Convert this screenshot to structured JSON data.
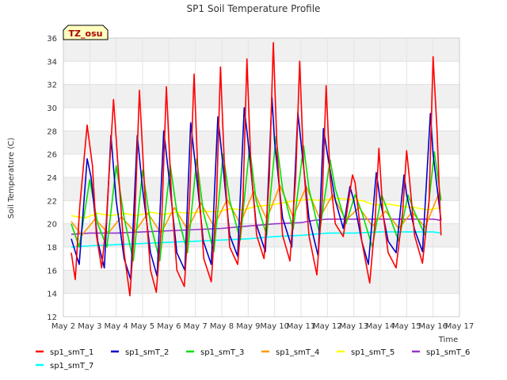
{
  "chart_data": {
    "type": "line",
    "title": "SP1 Soil Temperature Profile",
    "xlabel": "Time",
    "ylabel": "Soil Temperature (C)",
    "badge": "TZ_osu",
    "xlim": [
      2,
      17
    ],
    "ylim": [
      12,
      36
    ],
    "x_ticks": [
      {
        "v": 2,
        "label": "May 2"
      },
      {
        "v": 3,
        "label": "May 3"
      },
      {
        "v": 4,
        "label": "May 4"
      },
      {
        "v": 5,
        "label": "May 5"
      },
      {
        "v": 6,
        "label": "May 6"
      },
      {
        "v": 7,
        "label": "May 7"
      },
      {
        "v": 8,
        "label": "May 8"
      },
      {
        "v": 9,
        "label": "May 9"
      },
      {
        "v": 10,
        "label": "May 10"
      },
      {
        "v": 11,
        "label": "May 11"
      },
      {
        "v": 12,
        "label": "May 12"
      },
      {
        "v": 13,
        "label": "May 13"
      },
      {
        "v": 14,
        "label": "May 14"
      },
      {
        "v": 15,
        "label": "May 15"
      },
      {
        "v": 16,
        "label": "May 16"
      },
      {
        "v": 17,
        "label": "May 17"
      }
    ],
    "y_ticks": [
      {
        "v": 12,
        "label": "12"
      },
      {
        "v": 14,
        "label": "14"
      },
      {
        "v": 16,
        "label": "16"
      },
      {
        "v": 18,
        "label": "18"
      },
      {
        "v": 20,
        "label": "20"
      },
      {
        "v": 22,
        "label": "22"
      },
      {
        "v": 24,
        "label": "24"
      },
      {
        "v": 26,
        "label": "26"
      },
      {
        "v": 28,
        "label": "28"
      },
      {
        "v": 30,
        "label": "30"
      },
      {
        "v": 32,
        "label": "32"
      },
      {
        "v": 34,
        "label": "34"
      },
      {
        "v": 36,
        "label": "36"
      }
    ],
    "series": [
      {
        "name": "sp1_smT_1",
        "color": "#ff0000",
        "x": [
          2.3,
          2.45,
          2.62,
          2.9,
          3.1,
          3.25,
          3.45,
          3.62,
          3.9,
          4.1,
          4.3,
          4.52,
          4.7,
          4.88,
          5.1,
          5.3,
          5.52,
          5.72,
          5.9,
          6.1,
          6.3,
          6.58,
          6.78,
          6.95,
          7.1,
          7.32,
          7.6,
          7.8,
          7.95,
          8.1,
          8.3,
          8.6,
          8.8,
          8.95,
          9.1,
          9.32,
          9.6,
          9.8,
          9.95,
          10.1,
          10.3,
          10.58,
          10.8,
          10.95,
          11.1,
          11.3,
          11.6,
          11.8,
          11.95,
          12.1,
          12.3,
          12.6,
          12.8,
          12.95,
          13.05,
          13.3,
          13.6,
          13.8,
          13.95,
          14.1,
          14.3,
          14.6,
          14.85,
          15.0,
          15.1,
          15.3,
          15.6,
          15.85,
          16.0,
          16.15,
          16.3
        ],
        "y": [
          17.5,
          15.2,
          21.5,
          28.5,
          25,
          19,
          16.2,
          20,
          30.7,
          24,
          17.5,
          13.8,
          20,
          31.5,
          22,
          16,
          14.1,
          20,
          31.8,
          22,
          16,
          14.6,
          22,
          32.9,
          24,
          17,
          15.0,
          22,
          33.5,
          25,
          18,
          16.5,
          22,
          34.2,
          25,
          19,
          17.0,
          24,
          35.6,
          26,
          19,
          16.8,
          24,
          34.0,
          25,
          19,
          15.6,
          22,
          31.9,
          24,
          20,
          18.9,
          22,
          24.2,
          23.5,
          18.5,
          14.9,
          20,
          26.5,
          21,
          17.5,
          16.2,
          21,
          26.3,
          24,
          19,
          16.6,
          22,
          34.4,
          28,
          19
        ]
      },
      {
        "name": "sp1_smT_2",
        "color": "#0000cc",
        "x": [
          2.3,
          2.6,
          2.9,
          3.05,
          3.3,
          3.55,
          3.8,
          4.0,
          4.3,
          4.55,
          4.8,
          5.0,
          5.3,
          5.55,
          5.8,
          6.0,
          6.3,
          6.6,
          6.82,
          7.0,
          7.3,
          7.6,
          7.85,
          8.0,
          8.3,
          8.6,
          8.85,
          9.0,
          9.3,
          9.65,
          9.9,
          10.0,
          10.3,
          10.65,
          10.88,
          11.0,
          11.3,
          11.65,
          11.85,
          12.0,
          12.3,
          12.6,
          12.85,
          13.0,
          13.3,
          13.55,
          13.85,
          14.0,
          14.3,
          14.6,
          14.9,
          15.0,
          15.3,
          15.6,
          15.9,
          16.0,
          16.3
        ],
        "y": [
          18.7,
          16.5,
          25.6,
          24,
          18.5,
          16.2,
          27.6,
          22,
          17,
          15.2,
          27.6,
          23,
          17.5,
          15.5,
          28.0,
          24,
          17.5,
          16.0,
          28.7,
          25,
          18.5,
          16.5,
          29.2,
          26,
          19,
          17.2,
          30.0,
          27,
          20,
          17.6,
          30.9,
          27,
          20.5,
          18,
          29.6,
          27,
          20.5,
          17.2,
          28.2,
          26,
          22,
          19.6,
          23.2,
          22,
          18.5,
          16.5,
          24.4,
          22,
          18.5,
          17.5,
          24.2,
          22.5,
          19.5,
          17.6,
          29.5,
          26,
          20.3
        ]
      },
      {
        "name": "sp1_smT_3",
        "color": "#00e000",
        "x": [
          2.3,
          2.6,
          3.0,
          3.3,
          3.65,
          4.0,
          4.3,
          4.65,
          5.0,
          5.3,
          5.65,
          6.05,
          6.3,
          6.7,
          7.05,
          7.3,
          7.7,
          8.05,
          8.3,
          8.7,
          9.05,
          9.3,
          9.7,
          10.05,
          10.3,
          10.7,
          11.1,
          11.3,
          11.7,
          12.1,
          12.3,
          12.7,
          13.05,
          13.3,
          13.7,
          14.05,
          14.3,
          14.7,
          15.05,
          15.3,
          15.7,
          16.05,
          16.3
        ],
        "y": [
          20,
          18.0,
          23.8,
          20,
          18,
          25.0,
          20.5,
          16.8,
          24.6,
          20,
          16.8,
          25.0,
          21,
          17.5,
          25.6,
          21,
          17.6,
          26.0,
          22,
          18.6,
          26.6,
          22,
          19,
          27.5,
          23,
          19.5,
          26.7,
          23,
          19.2,
          25.5,
          23,
          20.0,
          22.5,
          21,
          18.0,
          22.5,
          21,
          18.5,
          22.5,
          21,
          19,
          26.2,
          22.0
        ]
      },
      {
        "name": "sp1_smT_4",
        "color": "#ff9900",
        "x": [
          2.3,
          2.7,
          3.2,
          3.7,
          4.2,
          4.7,
          5.2,
          5.7,
          6.2,
          6.7,
          7.2,
          7.7,
          8.2,
          8.7,
          9.2,
          9.7,
          10.2,
          10.7,
          11.2,
          11.7,
          12.2,
          12.7,
          13.2,
          13.7,
          14.2,
          14.7,
          15.2,
          15.7,
          16.2,
          16.3
        ],
        "y": [
          20.2,
          19.0,
          20.4,
          19.2,
          20.6,
          19.3,
          20.9,
          19.2,
          21.4,
          19.5,
          21.8,
          19.8,
          22.1,
          20.0,
          22.8,
          20.4,
          23.3,
          20.6,
          23.2,
          20.5,
          22.5,
          20.3,
          21.4,
          19.8,
          21.1,
          19.6,
          21.0,
          19.7,
          22.5,
          22.3
        ]
      },
      {
        "name": "sp1_smT_5",
        "color": "#ffff00",
        "x": [
          2.3,
          2.8,
          3.3,
          3.8,
          4.3,
          4.8,
          5.3,
          5.8,
          6.3,
          6.8,
          7.3,
          7.8,
          8.3,
          8.8,
          9.3,
          9.8,
          10.3,
          10.8,
          11.3,
          11.8,
          12.3,
          12.8,
          13.3,
          13.8,
          14.3,
          14.8,
          15.3,
          15.8,
          16.3
        ],
        "y": [
          20.7,
          20.5,
          20.9,
          20.7,
          20.9,
          20.7,
          21.0,
          20.8,
          21.0,
          20.9,
          21.1,
          21.0,
          21.3,
          21.2,
          21.5,
          21.6,
          21.8,
          22.0,
          22.1,
          22.0,
          22.2,
          22.1,
          22.0,
          21.6,
          21.7,
          21.5,
          21.4,
          21.2,
          21.4
        ]
      },
      {
        "name": "sp1_smT_6",
        "color": "#9933cc",
        "x": [
          2.3,
          3.0,
          4.0,
          5.0,
          6.0,
          7.0,
          8.0,
          9.0,
          10.0,
          11.0,
          11.5,
          12.0,
          13.0,
          14.0,
          15.0,
          16.0,
          16.3
        ],
        "y": [
          19.1,
          19.2,
          19.2,
          19.3,
          19.4,
          19.5,
          19.6,
          19.8,
          20.0,
          20.1,
          20.3,
          20.4,
          20.4,
          20.4,
          20.4,
          20.4,
          20.3
        ]
      },
      {
        "name": "sp1_smT_7",
        "color": "#00ffff",
        "x": [
          2.3,
          3.0,
          4.0,
          5.0,
          6.0,
          7.0,
          8.0,
          9.0,
          10.0,
          11.0,
          12.0,
          13.0,
          14.0,
          15.0,
          16.0,
          16.3
        ],
        "y": [
          18.0,
          18.1,
          18.2,
          18.3,
          18.4,
          18.5,
          18.6,
          18.7,
          18.9,
          19.0,
          19.2,
          19.2,
          19.3,
          19.3,
          19.3,
          19.2
        ]
      }
    ]
  }
}
